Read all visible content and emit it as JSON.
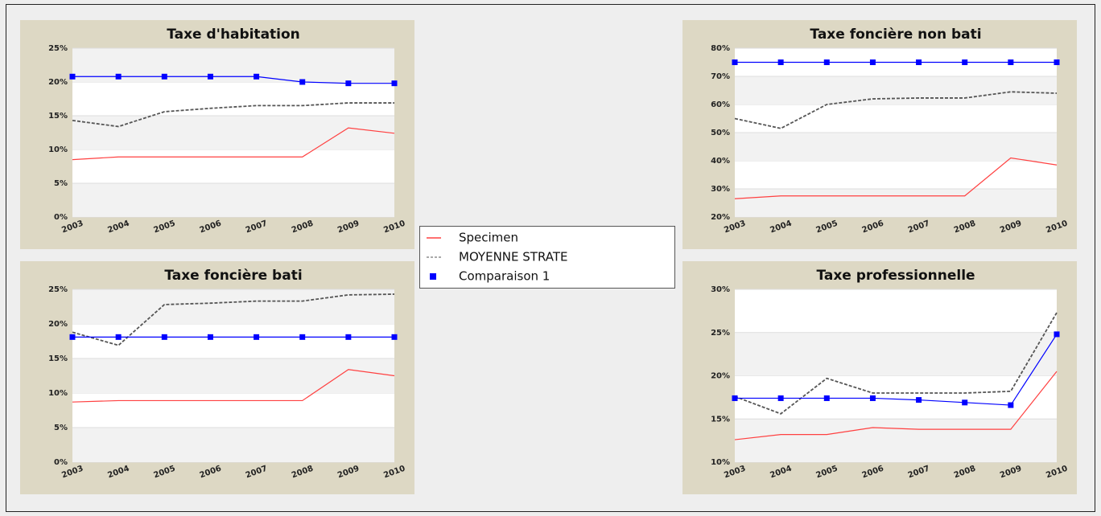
{
  "chart_data": [
    {
      "type": "line",
      "title": "Taxe d'habitation",
      "grid": true,
      "categories": [
        "2003",
        "2004",
        "2005",
        "2006",
        "2007",
        "2008",
        "2009",
        "2010"
      ],
      "ylim": [
        0,
        25
      ],
      "yticks": [
        {
          "value": 0,
          "label": "0%"
        },
        {
          "value": 5,
          "label": "5%"
        },
        {
          "value": 10,
          "label": "10%"
        },
        {
          "value": 15,
          "label": "15%"
        },
        {
          "value": 20,
          "label": "20%"
        },
        {
          "value": 25,
          "label": "25%"
        }
      ],
      "series": [
        {
          "name": "Specimen",
          "color": "#ff4040",
          "values": [
            8.5,
            8.9,
            8.9,
            8.9,
            8.9,
            8.9,
            13.2,
            12.4
          ]
        },
        {
          "name": "MOYENNE STRATE",
          "color": "#555555",
          "dashed": true,
          "values": [
            14.3,
            13.4,
            15.6,
            16.1,
            16.5,
            16.5,
            16.9,
            16.9
          ]
        },
        {
          "name": "Comparaison 1",
          "color": "#0000ff",
          "marker": "square",
          "values": [
            20.8,
            20.8,
            20.8,
            20.8,
            20.8,
            20.0,
            19.8,
            19.8
          ]
        }
      ]
    },
    {
      "type": "line",
      "title": "Taxe foncière non bati",
      "grid": true,
      "categories": [
        "2003",
        "2004",
        "2005",
        "2006",
        "2007",
        "2008",
        "2009",
        "2010"
      ],
      "ylim": [
        20,
        80
      ],
      "yticks": [
        {
          "value": 20,
          "label": "20%"
        },
        {
          "value": 30,
          "label": "30%"
        },
        {
          "value": 40,
          "label": "40%"
        },
        {
          "value": 50,
          "label": "50%"
        },
        {
          "value": 60,
          "label": "60%"
        },
        {
          "value": 70,
          "label": "70%"
        },
        {
          "value": 80,
          "label": "80%"
        }
      ],
      "series": [
        {
          "name": "Specimen",
          "color": "#ff4040",
          "values": [
            26.5,
            27.5,
            27.5,
            27.5,
            27.5,
            27.5,
            41,
            38.5
          ]
        },
        {
          "name": "MOYENNE STRATE",
          "color": "#555555",
          "dashed": true,
          "values": [
            55,
            51.5,
            60,
            62,
            62.3,
            62.3,
            64.5,
            64
          ]
        },
        {
          "name": "Comparaison 1",
          "color": "#0000ff",
          "marker": "square",
          "values": [
            75,
            75,
            75,
            75,
            75,
            75,
            75,
            75
          ]
        }
      ]
    },
    {
      "type": "line",
      "title": "Taxe foncière bati",
      "grid": true,
      "categories": [
        "2003",
        "2004",
        "2005",
        "2006",
        "2007",
        "2008",
        "2009",
        "2010"
      ],
      "ylim": [
        0,
        25
      ],
      "yticks": [
        {
          "value": 0,
          "label": "0%"
        },
        {
          "value": 5,
          "label": "5%"
        },
        {
          "value": 10,
          "label": "10%"
        },
        {
          "value": 15,
          "label": "15%"
        },
        {
          "value": 20,
          "label": "20%"
        },
        {
          "value": 25,
          "label": "25%"
        }
      ],
      "series": [
        {
          "name": "Specimen",
          "color": "#ff4040",
          "values": [
            8.7,
            8.9,
            8.9,
            8.9,
            8.9,
            8.9,
            13.4,
            12.5
          ]
        },
        {
          "name": "MOYENNE STRATE",
          "color": "#555555",
          "dashed": true,
          "values": [
            18.8,
            16.9,
            22.8,
            23,
            23.3,
            23.3,
            24.2,
            24.3
          ]
        },
        {
          "name": "Comparaison 1",
          "color": "#0000ff",
          "marker": "square",
          "values": [
            18.1,
            18.1,
            18.1,
            18.1,
            18.1,
            18.1,
            18.1,
            18.1
          ]
        }
      ]
    },
    {
      "type": "line",
      "title": "Taxe professionnelle",
      "grid": true,
      "categories": [
        "2003",
        "2004",
        "2005",
        "2006",
        "2007",
        "2008",
        "2009",
        "2010"
      ],
      "ylim": [
        10,
        30
      ],
      "yticks": [
        {
          "value": 10,
          "label": "10%"
        },
        {
          "value": 15,
          "label": "15%"
        },
        {
          "value": 20,
          "label": "20%"
        },
        {
          "value": 25,
          "label": "25%"
        },
        {
          "value": 30,
          "label": "30%"
        }
      ],
      "series": [
        {
          "name": "Specimen",
          "color": "#ff4040",
          "values": [
            12.6,
            13.2,
            13.2,
            14,
            13.8,
            13.8,
            13.8,
            20.5
          ]
        },
        {
          "name": "MOYENNE STRATE",
          "color": "#555555",
          "dashed": true,
          "values": [
            17.6,
            15.6,
            19.7,
            18,
            18,
            18,
            18.2,
            27.3
          ]
        },
        {
          "name": "Comparaison 1",
          "color": "#0000ff",
          "marker": "square",
          "values": [
            17.4,
            17.4,
            17.4,
            17.4,
            17.2,
            16.9,
            16.6,
            24.8
          ]
        }
      ]
    }
  ]
}
